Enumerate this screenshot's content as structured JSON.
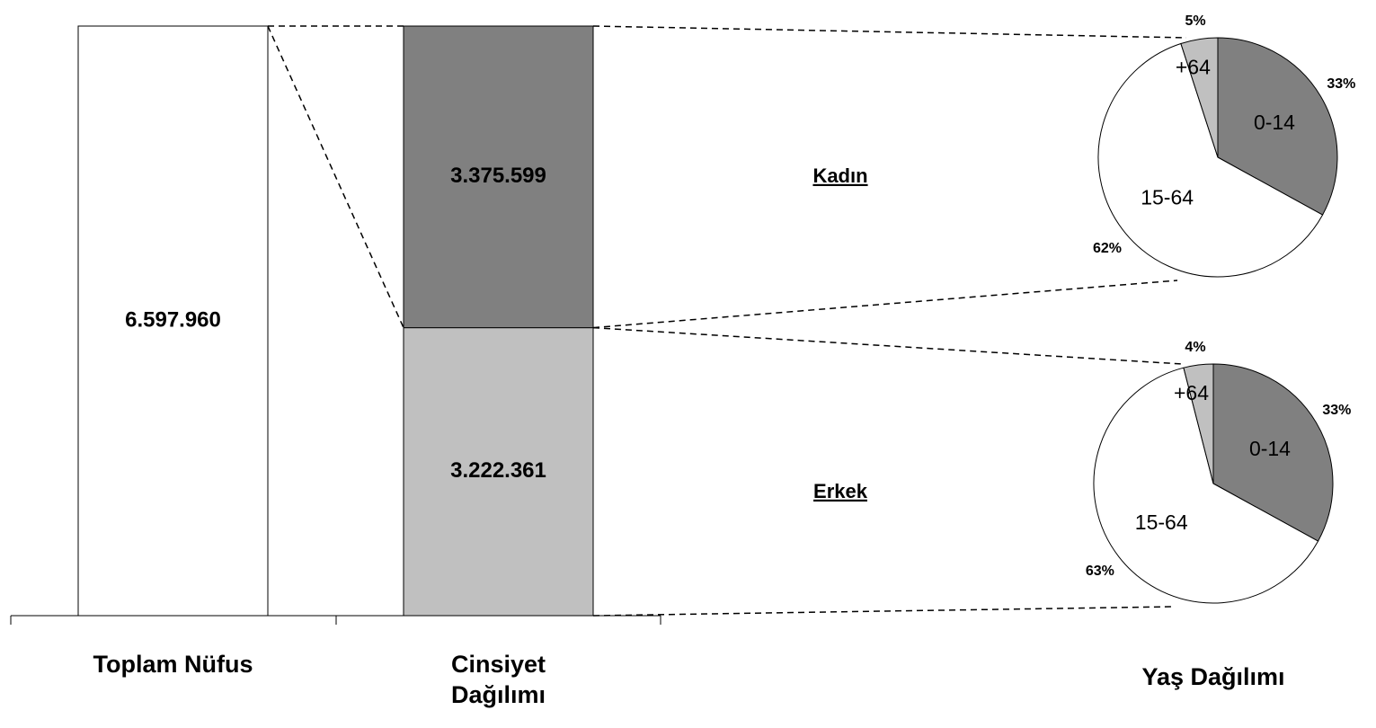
{
  "chart_data": [
    {
      "type": "bar",
      "stacked": true,
      "categories": [
        "Toplam Nüfus",
        "Cinsiyet Dağılımı"
      ],
      "ylim": [
        0,
        6597960
      ],
      "series": [
        {
          "color": "#ffffff",
          "values": [
            6597960,
            null
          ],
          "value_labels": [
            "6.597.960",
            null
          ]
        },
        {
          "name": "Erkek",
          "color": "#c0c0c0",
          "values": [
            null,
            3222361
          ],
          "value_labels": [
            null,
            "3.222.361"
          ]
        },
        {
          "name": "Kadın",
          "color": "#808080",
          "values": [
            null,
            3375599
          ],
          "value_labels": [
            null,
            "3.375.599"
          ]
        }
      ]
    },
    {
      "type": "pie",
      "categories": [
        "0-14",
        "15-64",
        "+64"
      ],
      "values": [
        33,
        62,
        5
      ],
      "value_labels": [
        "33%",
        "62%",
        "5%"
      ],
      "colors": [
        "#808080",
        "#ffffff",
        "#c0c0c0"
      ]
    },
    {
      "type": "pie",
      "categories": [
        "0-14",
        "15-64",
        "+64"
      ],
      "values": [
        33,
        63,
        4
      ],
      "value_labels": [
        "33%",
        "63%",
        "4%"
      ],
      "colors": [
        "#808080",
        "#ffffff",
        "#c0c0c0"
      ]
    }
  ],
  "pie_label": "Yaş Dağılımı"
}
